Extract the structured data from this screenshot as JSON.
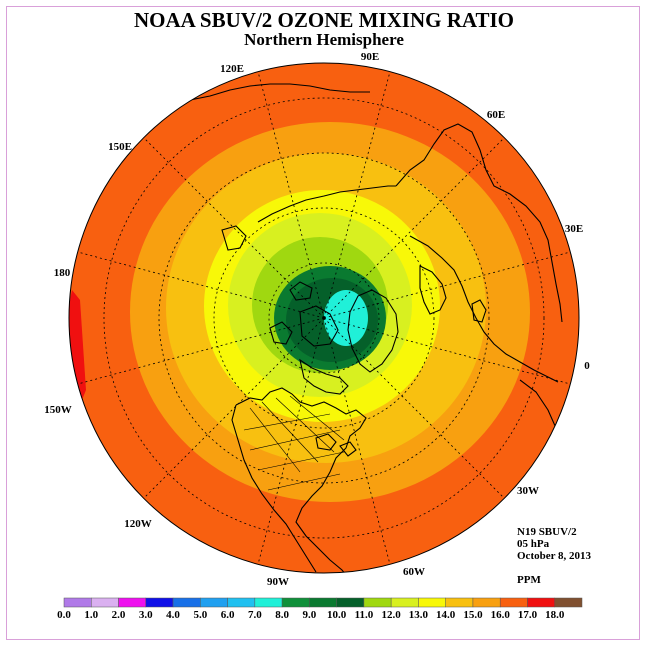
{
  "title": "NOAA SBUV/2 OZONE MIXING RATIO",
  "subtitle": "Northern Hemisphere",
  "info": {
    "instrument": "N19 SBUV/2",
    "level": "05 hPa",
    "date": "October 8, 2013",
    "units": "PPM"
  },
  "meridian_labels": [
    "90E",
    "60E",
    "30E",
    "0",
    "30W",
    "60W",
    "90W",
    "120W",
    "150W",
    "180",
    "150E",
    "120E"
  ],
  "colorbar": {
    "ticks": [
      "0.0",
      "1.0",
      "2.0",
      "3.0",
      "4.0",
      "5.0",
      "6.0",
      "7.0",
      "8.0",
      "9.0",
      "10.0",
      "11.0",
      "12.0",
      "13.0",
      "14.0",
      "15.0",
      "16.0",
      "17.0",
      "18.0"
    ],
    "colors": [
      "#b07ae8",
      "#dab0f0",
      "#ee10ee",
      "#1010e8",
      "#1870e8",
      "#20a0f0",
      "#20c0f0",
      "#20f0d8",
      "#10903a",
      "#0a7a30",
      "#05602a",
      "#a0d810",
      "#d8f020",
      "#f8f808",
      "#f8c010",
      "#f8a010",
      "#f86010",
      "#f01010",
      "#805030"
    ]
  },
  "contours": {
    "region_colors": [
      "#f86010",
      "#f8a010",
      "#f8c010",
      "#f8f808",
      "#d8f020",
      "#a0d810",
      "#0a7a30",
      "#05602a",
      "#20f0d8"
    ],
    "max_region_color": "#f01010"
  }
}
